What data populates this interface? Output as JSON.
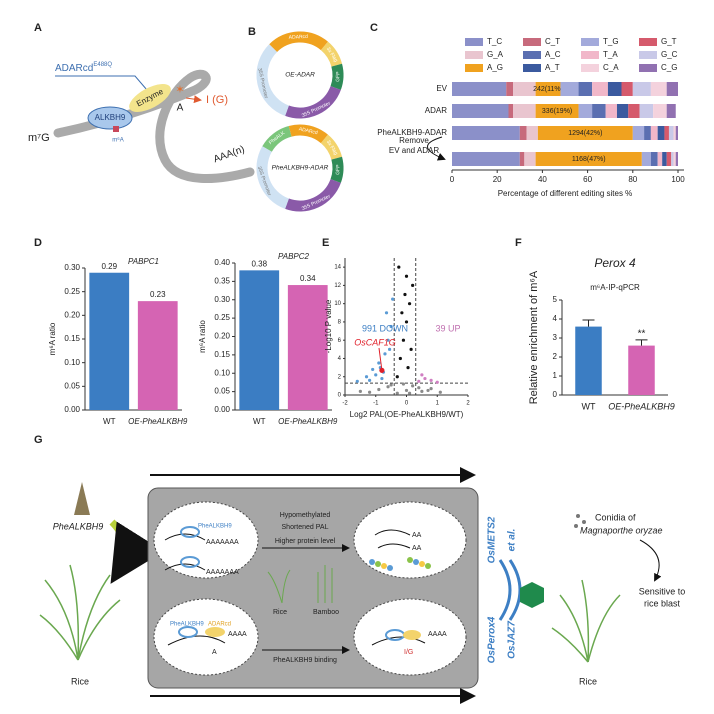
{
  "panel_labels": [
    "A",
    "B",
    "C",
    "D",
    "E",
    "F",
    "G"
  ],
  "panel_a": {
    "enzyme_name": "ADARcd",
    "enzyme_mutation": "E488Q",
    "enzyme": "Enzyme",
    "reader": "ALKBH9",
    "mark": "m⁶A",
    "cap": "m⁷G",
    "edited_base": "A",
    "product": "I (G)",
    "tail": "AAA(n)"
  },
  "panel_b": {
    "constructs": [
      {
        "name": "OE-ADAR",
        "segments": [
          "ADARcd",
          "3x Flag",
          "GFP",
          "35S Promoter",
          "35S Promoter"
        ]
      },
      {
        "name": "PheALKBH9-ADAR",
        "segments": [
          "PheALK",
          "ADARcd",
          "3x Flag",
          "GFP",
          "35S Promoter",
          "35S Promoter"
        ]
      }
    ]
  },
  "chart_data": [
    {
      "type": "bar",
      "orientation": "horizontal",
      "stacked": true,
      "categories": [
        "EV",
        "ADAR",
        "PheALKBH9-ADAR",
        null
      ],
      "annotation": [
        "Remove",
        "EV and ADAR"
      ],
      "xlabel": "Percentage of different editing sites %",
      "xlim": [
        0,
        100
      ],
      "xticks": [
        0,
        20,
        40,
        60,
        80,
        100
      ],
      "legend_order": [
        "T_C",
        "C_T",
        "T_G",
        "G_T",
        "G_A",
        "A_C",
        "T_A",
        "G_C",
        "A_G",
        "A_T",
        "C_A",
        "C_G"
      ],
      "series": [
        {
          "name": "T_C",
          "color": "#8b90c9",
          "values": [
            24,
            25,
            30,
            30
          ]
        },
        {
          "name": "C_T",
          "color": "#c76a7c",
          "values": [
            3,
            2,
            3,
            2
          ]
        },
        {
          "name": "G_A",
          "color": "#e9c5cf",
          "values": [
            10,
            10,
            5,
            5
          ]
        },
        {
          "name": "A_G",
          "color": "#f0a21f",
          "values": [
            11,
            19,
            42,
            47
          ],
          "value_labels": [
            "242(11%)",
            "336(19%)",
            "1294(42%)",
            "1168(47%)"
          ]
        },
        {
          "name": "T_G",
          "color": "#a3aadb",
          "values": [
            8,
            6,
            5,
            4
          ]
        },
        {
          "name": "A_C",
          "color": "#5b6fb1",
          "values": [
            6,
            6,
            3,
            3
          ]
        },
        {
          "name": "T_A",
          "color": "#f1b7c9",
          "values": [
            7,
            5,
            3,
            2
          ]
        },
        {
          "name": "A_T",
          "color": "#3b5a9f",
          "values": [
            6,
            5,
            3,
            2
          ]
        },
        {
          "name": "G_T",
          "color": "#d55a6c",
          "values": [
            5,
            5,
            2,
            2
          ]
        },
        {
          "name": "G_C",
          "color": "#c9c9e8",
          "values": [
            8,
            6,
            2,
            1
          ]
        },
        {
          "name": "C_A",
          "color": "#f4d2dd",
          "values": [
            7,
            6,
            1,
            1
          ]
        },
        {
          "name": "C_G",
          "color": "#9171b1",
          "values": [
            5,
            4,
            1,
            1
          ]
        }
      ]
    },
    {
      "type": "bar",
      "title": "PABPC1",
      "ylabel": "m⁶A ratio",
      "categories": [
        "WT",
        "OE-PheALKBH9"
      ],
      "values": [
        0.29,
        0.23
      ],
      "colors": [
        "#3b7dc3",
        "#d564b3"
      ],
      "ylim": [
        0,
        0.3
      ],
      "yticks": [
        {
          "value": 0,
          "label": "0.00"
        },
        {
          "value": 0.05,
          "label": "0.05"
        },
        {
          "value": 0.1,
          "label": "0.10"
        },
        {
          "value": 0.15,
          "label": "0.15"
        },
        {
          "value": 0.2,
          "label": "0.20"
        },
        {
          "value": 0.25,
          "label": "0.25"
        },
        {
          "value": 0.3,
          "label": "0.30"
        }
      ]
    },
    {
      "type": "bar",
      "title": "PABPC2",
      "ylabel": "m⁶A ratio",
      "categories": [
        "WT",
        "OE-PheALKBH9"
      ],
      "values": [
        0.38,
        0.34
      ],
      "colors": [
        "#3b7dc3",
        "#d564b3"
      ],
      "ylim": [
        0,
        0.4
      ],
      "yticks": [
        {
          "value": 0,
          "label": "0.00"
        },
        {
          "value": 0.05,
          "label": "0.05"
        },
        {
          "value": 0.1,
          "label": "0.10"
        },
        {
          "value": 0.15,
          "label": "0.15"
        },
        {
          "value": 0.2,
          "label": "0.20"
        },
        {
          "value": 0.25,
          "label": "0.25"
        },
        {
          "value": 0.3,
          "label": "0.30"
        },
        {
          "value": 0.35,
          "label": "0.35"
        },
        {
          "value": 0.4,
          "label": "0.40"
        }
      ]
    },
    {
      "type": "scatter",
      "xlabel": "Log2 PAL(OE-PheALKBH9/WT)",
      "ylabel": "-Log10 P value",
      "xlim": [
        -2,
        2
      ],
      "xticks": [
        -2,
        -1,
        0,
        1,
        2
      ],
      "ylim": [
        0,
        15
      ],
      "yticks": [
        0,
        2,
        4,
        6,
        8,
        10,
        12,
        14
      ],
      "thresholds": {
        "x": [
          -0.4,
          0.3
        ],
        "y": 1.3
      },
      "annotations": {
        "down": "991 DOWN",
        "up": "39 UP",
        "gene": "OsCAF1G"
      },
      "series": [
        {
          "color": "#8a8a8a",
          "x": [
            -1.2,
            -0.9,
            -0.6,
            -0.3,
            0,
            0.2,
            0.5,
            0.8,
            1.1,
            -0.5,
            0.1,
            0.4,
            -0.1,
            0.7,
            -1.5
          ],
          "values": [
            0.3,
            0.6,
            0.9,
            0.2,
            0.5,
            1.0,
            0.4,
            0.7,
            0.3,
            1.1,
            0.2,
            0.8,
            1.2,
            0.5,
            0.4
          ]
        },
        {
          "color": "#111111",
          "x": [
            -0.3,
            -0.2,
            -0.1,
            0,
            0.1,
            0.2,
            -0.25,
            0.05,
            -0.15,
            0.15,
            0,
            -0.05
          ],
          "values": [
            2,
            4,
            6,
            8,
            10,
            12,
            14,
            3,
            9,
            5,
            13,
            11
          ]
        },
        {
          "color": "#5b9bd5",
          "x": [
            -1.6,
            -1.3,
            -1.1,
            -0.9,
            -0.8,
            -0.7,
            -0.6,
            -0.5,
            -1.0,
            -0.85,
            -0.55,
            -0.65,
            -1.2,
            -0.45,
            -0.75
          ],
          "values": [
            1.5,
            2,
            2.8,
            3.5,
            1.8,
            4.5,
            6,
            7.5,
            2.2,
            3,
            5,
            9,
            1.6,
            10.5,
            2.5
          ]
        },
        {
          "color": "#d07fc2",
          "x": [
            0.4,
            0.6,
            0.8,
            1.0,
            0.5
          ],
          "values": [
            1.5,
            1.8,
            1.6,
            1.4,
            2.2
          ]
        },
        {
          "color": "#e0202a",
          "x": [
            -0.8
          ],
          "values": [
            2.7
          ]
        }
      ]
    },
    {
      "type": "bar",
      "title": "Perox 4",
      "subtitle": "m⁶A-IP-qPCR",
      "ylabel": "Relative enrichment of m⁶A",
      "categories": [
        "WT",
        "OE-PheALKBH9"
      ],
      "values": [
        3.6,
        2.6
      ],
      "errors": [
        0.35,
        0.3
      ],
      "colors": [
        "#3b7dc3",
        "#d564b3"
      ],
      "annotation": "**",
      "ylim": [
        0,
        5
      ],
      "yticks": [
        0,
        1,
        2,
        3,
        4,
        5
      ]
    }
  ],
  "panel_g": {
    "plant_left": "PheALKBH9",
    "host_left": "Rice",
    "tails_top": [
      "AAAAAAA",
      "AAAAAAA"
    ],
    "top_reader": "PheALKBH9",
    "effects": [
      "Hypomethylated",
      "Shortened PAL",
      "Higher protein level"
    ],
    "short_tails": [
      "AA",
      "AA"
    ],
    "plants": [
      "Rice",
      "Bamboo"
    ],
    "bottom_reader": "PheALKBH9",
    "bottom_enzyme": "ADARcd",
    "bottom_tail": "AAAA",
    "bottom_base": "A",
    "binding": "PheALKBH9 binding",
    "product": "I/G",
    "product_tail": "AAAA",
    "targets": [
      "OsMETS2",
      "et al.",
      "OsPerox4",
      "OsJAZ7"
    ],
    "pathogen": [
      "Conidia of",
      "Magnaporthe oryzae"
    ],
    "outcome": [
      "Sensitive to",
      "rice blast"
    ],
    "host_right": "Rice"
  }
}
